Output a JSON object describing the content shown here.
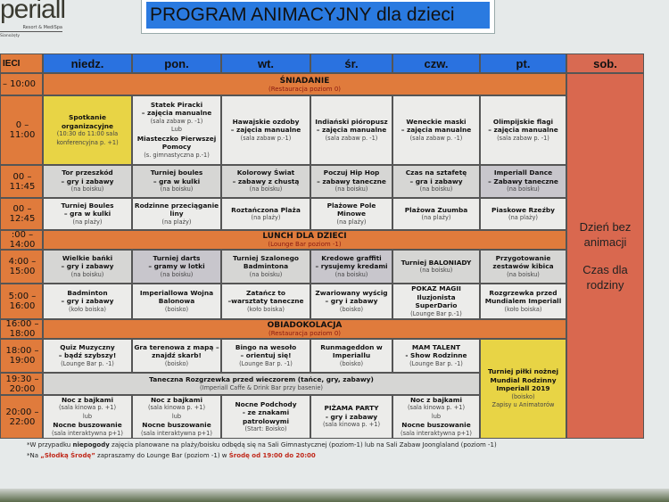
{
  "logo": {
    "brand": "periall",
    "subtitle": "Resort & MediSpa",
    "location": "Sianożęty"
  },
  "title": "PROGRAM ANIMACYJNY dla dzieci",
  "header": {
    "corner": "IECI",
    "days": [
      "niedz.",
      "pon.",
      "wt.",
      "śr.",
      "czw.",
      "pt.",
      "sob."
    ]
  },
  "rows": [
    {
      "time": "– 10:00",
      "banner": {
        "title": "ŚNIADANIE",
        "sub": "(Restauracja poziom 0)"
      }
    },
    {
      "time": "0 – 11:00",
      "cells": [
        {
          "tone": "yellow",
          "lines": [
            {
              "t": "Spotkanie organizacyjne",
              "s": "b"
            },
            {
              "t": "(10:30 do 11:00 sala konferencyjna p. +1)",
              "s": "s"
            }
          ]
        },
        {
          "tone": "light",
          "lines": [
            {
              "t": "Statek Piracki",
              "s": "b"
            },
            {
              "t": "– zajęcia manualne",
              "s": "b"
            },
            {
              "t": "(sala zabaw p. -1)",
              "s": "s"
            },
            {
              "t": "Lub",
              "s": "s"
            },
            {
              "t": "Miasteczko Pierwszej Pomocy",
              "s": "b"
            },
            {
              "t": "(s. gimnastyczna p.-1)",
              "s": "s"
            }
          ]
        },
        {
          "tone": "light",
          "lines": [
            {
              "t": "Hawajskie ozdoby",
              "s": "b"
            },
            {
              "t": "– zajęcia manualne",
              "s": "b"
            },
            {
              "t": "(sala zabaw p.-1)",
              "s": "s"
            }
          ]
        },
        {
          "tone": "light",
          "lines": [
            {
              "t": "Indiański pióropusz",
              "s": "b"
            },
            {
              "t": "– zajęcia manualne",
              "s": "b"
            },
            {
              "t": "(sala zabaw p. -1)",
              "s": "s"
            }
          ]
        },
        {
          "tone": "light",
          "lines": [
            {
              "t": "Weneckie maski",
              "s": "b"
            },
            {
              "t": "– zajęcia manualne",
              "s": "b"
            },
            {
              "t": "(sala zabaw p. -1)",
              "s": "s"
            }
          ]
        },
        {
          "tone": "light",
          "lines": [
            {
              "t": "Olimpijskie flagi",
              "s": "b"
            },
            {
              "t": "– zajęcia manualne",
              "s": "b"
            },
            {
              "t": "(sala zabaw p. -1)",
              "s": "s"
            }
          ]
        }
      ]
    },
    {
      "time": "00 – 11:45",
      "cells": [
        {
          "tone": "gray",
          "lines": [
            {
              "t": "Tor przeszkód",
              "s": "b"
            },
            {
              "t": "– gry i zabawy",
              "s": "b"
            },
            {
              "t": "(na boisku)",
              "s": "s"
            }
          ]
        },
        {
          "tone": "gray",
          "lines": [
            {
              "t": "Turniej boules",
              "s": "b"
            },
            {
              "t": "– gra w kulki",
              "s": "b"
            },
            {
              "t": "(na boisku)",
              "s": "s"
            }
          ]
        },
        {
          "tone": "gray",
          "lines": [
            {
              "t": "Kolorowy Świat",
              "s": "b"
            },
            {
              "t": "– zabawy z chustą",
              "s": "b"
            },
            {
              "t": "(na boisku)",
              "s": "s"
            }
          ]
        },
        {
          "tone": "gray",
          "lines": [
            {
              "t": "Poczuj Hip Hop",
              "s": "b"
            },
            {
              "t": "– zabawy taneczne",
              "s": "b"
            },
            {
              "t": "(na boisku)",
              "s": "s"
            }
          ]
        },
        {
          "tone": "gray",
          "lines": [
            {
              "t": "Czas na sztafetę",
              "s": "b"
            },
            {
              "t": "– gra i zabawy",
              "s": "b"
            },
            {
              "t": "(na boisku)",
              "s": "s"
            }
          ]
        },
        {
          "tone": "purple",
          "lines": [
            {
              "t": "Imperiall Dance",
              "s": "b"
            },
            {
              "t": "– Zabawy taneczne",
              "s": "b"
            },
            {
              "t": "(na boisku)",
              "s": "s"
            }
          ]
        }
      ]
    },
    {
      "time": "00 – 12:45",
      "cells": [
        {
          "tone": "light",
          "lines": [
            {
              "t": "Turniej Boules",
              "s": "b"
            },
            {
              "t": "– gra w kulki",
              "s": "b"
            },
            {
              "t": "(na plaży)",
              "s": "s"
            }
          ]
        },
        {
          "tone": "light",
          "lines": [
            {
              "t": "Rodzinne przeciąganie liny",
              "s": "b"
            },
            {
              "t": "(na plaży)",
              "s": "s"
            }
          ]
        },
        {
          "tone": "light",
          "lines": [
            {
              "t": "Roztańczona Plaża",
              "s": "b"
            },
            {
              "t": "(na plaży)",
              "s": "s"
            }
          ]
        },
        {
          "tone": "light",
          "lines": [
            {
              "t": "Plażowe Pole Minowe",
              "s": "b"
            },
            {
              "t": "(na plaży)",
              "s": "s"
            }
          ]
        },
        {
          "tone": "light",
          "lines": [
            {
              "t": "Plażowa Zuumba",
              "s": "b"
            },
            {
              "t": "(na plaży)",
              "s": "s"
            }
          ]
        },
        {
          "tone": "light",
          "lines": [
            {
              "t": "Piaskowe Rzeźby",
              "s": "b"
            },
            {
              "t": "(na plaży)",
              "s": "s"
            }
          ]
        }
      ]
    },
    {
      "time": ":00 – 14:00",
      "banner": {
        "title": "LUNCH DLA DZIECI",
        "sub": "(Lounge Bar poziom -1)"
      }
    },
    {
      "time": "4:00 – 15:00",
      "cells": [
        {
          "tone": "gray",
          "lines": [
            {
              "t": "Wielkie bańki",
              "s": "b"
            },
            {
              "t": "– gry i zabawy",
              "s": "b"
            },
            {
              "t": "(na boisku)",
              "s": "s"
            }
          ]
        },
        {
          "tone": "purple",
          "lines": [
            {
              "t": "Turniej darts",
              "s": "b"
            },
            {
              "t": "– gramy w lotki",
              "s": "b"
            },
            {
              "t": "(na boisku)",
              "s": "s"
            }
          ]
        },
        {
          "tone": "gray",
          "lines": [
            {
              "t": "Turniej Szalonego Badmintona",
              "s": "b"
            },
            {
              "t": "(na boisku)",
              "s": "s"
            }
          ]
        },
        {
          "tone": "purple",
          "lines": [
            {
              "t": "Kredowe graffiti",
              "s": "b"
            },
            {
              "t": "– rysujemy kredami",
              "s": "b"
            },
            {
              "t": "(na boisku)",
              "s": "s"
            }
          ]
        },
        {
          "tone": "gray",
          "lines": [
            {
              "t": "Turniej BALONIADY",
              "s": "b"
            },
            {
              "t": "(na boisku)",
              "s": "s"
            }
          ]
        },
        {
          "tone": "gray",
          "lines": [
            {
              "t": "Przygotowanie zestawów kibica",
              "s": "b"
            },
            {
              "t": "(na boisku)",
              "s": "s"
            }
          ]
        }
      ]
    },
    {
      "time": "5:00 – 16:00",
      "cells": [
        {
          "tone": "light",
          "lines": [
            {
              "t": "Badminton",
              "s": "b"
            },
            {
              "t": "– gry i zabawy",
              "s": "b"
            },
            {
              "t": "(koło boiska)",
              "s": "s"
            }
          ]
        },
        {
          "tone": "light",
          "lines": [
            {
              "t": "Imperiallowa Wojna Balonowa",
              "s": "b"
            },
            {
              "t": "(boisko)",
              "s": "s"
            }
          ]
        },
        {
          "tone": "light",
          "lines": [
            {
              "t": "Zatańcz to",
              "s": "b"
            },
            {
              "t": "–warsztaty taneczne",
              "s": "b"
            },
            {
              "t": "(koło boiska)",
              "s": "s"
            }
          ]
        },
        {
          "tone": "light",
          "lines": [
            {
              "t": "Zwariowany wyścig",
              "s": "b"
            },
            {
              "t": "– gry i zabawy",
              "s": "b"
            },
            {
              "t": "(boisko)",
              "s": "s"
            }
          ]
        },
        {
          "tone": "light",
          "lines": [
            {
              "t": "POKAZ MAGII",
              "s": "b"
            },
            {
              "t": "Iluzjonista",
              "s": "b"
            },
            {
              "t": "SuperDario",
              "s": "b"
            },
            {
              "t": "(Lounge Bar p.-1)",
              "s": "s"
            }
          ]
        },
        {
          "tone": "light",
          "lines": [
            {
              "t": "Rozgrzewka przed Mundialem Imperiall",
              "s": "b"
            },
            {
              "t": "(koło boiska)",
              "s": "s"
            }
          ]
        }
      ]
    },
    {
      "time": "16:00 – 18:00",
      "banner": {
        "title": "OBIADOKOLACJA",
        "sub": "(Restauracja poziom 0)"
      }
    },
    {
      "time": "18:00 – 19:00",
      "cells": [
        {
          "tone": "light",
          "lines": [
            {
              "t": "Quiz Muzyczny",
              "s": "b"
            },
            {
              "t": "– bądź szybszy!",
              "s": "b"
            },
            {
              "t": "(Lounge Bar p. -1)",
              "s": "s"
            }
          ]
        },
        {
          "tone": "light",
          "lines": [
            {
              "t": "Gra terenowa z mapą – znajdź skarb!",
              "s": "b"
            },
            {
              "t": "(boisko)",
              "s": "s"
            }
          ]
        },
        {
          "tone": "light",
          "lines": [
            {
              "t": "Bingo na wesoło",
              "s": "b"
            },
            {
              "t": "– orientuj się!",
              "s": "b"
            },
            {
              "t": "(Lounge Bar p. -1)",
              "s": "s"
            }
          ]
        },
        {
          "tone": "light",
          "lines": [
            {
              "t": "Runmageddon w Imperiallu",
              "s": "b"
            },
            {
              "t": "(boisko)",
              "s": "s"
            }
          ]
        },
        {
          "tone": "light",
          "lines": [
            {
              "t": "MAM TALENT",
              "s": "b"
            },
            {
              "t": "- Show Rodzinne",
              "s": "b"
            },
            {
              "t": "(Lounge Bar p. -1)",
              "s": "s"
            }
          ]
        },
        {
          "tone": "yellow",
          "lines": [
            {
              "t": "Turniej piłki nożnej Mundial Rodzinny Imperiall 2019",
              "s": "b"
            },
            {
              "t": "(boisko)",
              "s": "s"
            },
            {
              "t": " ",
              "s": "s"
            },
            {
              "t": "Zapisy u Animatorów",
              "s": "s"
            }
          ]
        }
      ]
    },
    {
      "time": "19:30 – 20:00",
      "cells": [
        {
          "tone": "gray",
          "lines": [
            {
              "t": "Taneczna Rozgrzewka przed wieczorem (tańce, gry, zabawy)",
              "s": "b"
            },
            {
              "t": "(Imperiall Caffe & Drink Bar przy basenie)",
              "s": "s"
            }
          ]
        }
      ]
    },
    {
      "time": "20:00 – 22:00",
      "cells": [
        {
          "tone": "light",
          "lines": [
            {
              "t": "Noc z bajkami",
              "s": "b"
            },
            {
              "t": "(sala kinowa p. +1)",
              "s": "s"
            },
            {
              "t": "lub",
              "s": "s"
            },
            {
              "t": "Nocne buszowanie",
              "s": "b"
            },
            {
              "t": "(sala interaktywna p+1)",
              "s": "s"
            }
          ]
        },
        {
          "tone": "light",
          "lines": [
            {
              "t": "Noc z bajkami",
              "s": "b"
            },
            {
              "t": "(sala kinowa p. +1)",
              "s": "s"
            },
            {
              "t": "lub",
              "s": "s"
            },
            {
              "t": "Nocne buszowanie",
              "s": "b"
            },
            {
              "t": "(sala interaktywna p+1)",
              "s": "s"
            }
          ]
        },
        {
          "tone": "light",
          "lines": [
            {
              "t": "Nocne Podchody",
              "s": "b"
            },
            {
              "t": "- ze znakami patrolowymi",
              "s": "b"
            },
            {
              "t": "(Start: Boisko)",
              "s": "s"
            }
          ]
        },
        {
          "tone": "light",
          "lines": [
            {
              "t": "PIŻAMA PARTY",
              "s": "b"
            },
            {
              "t": "- gry i zabawy",
              "s": "b"
            },
            {
              "t": "(sala kinowa p. +1)",
              "s": "s"
            }
          ]
        },
        {
          "tone": "light",
          "lines": [
            {
              "t": "Noc z bajkami",
              "s": "b"
            },
            {
              "t": "(sala kinowa p. +1)",
              "s": "s"
            },
            {
              "t": "lub",
              "s": "s"
            },
            {
              "t": "Nocne buszowanie",
              "s": "b"
            },
            {
              "t": "(sala interaktywna p+1)",
              "s": "s"
            }
          ]
        }
      ]
    }
  ],
  "saturday": {
    "line1": "Dzień bez animacji",
    "line2": "Czas dla rodziny"
  },
  "footnotes": {
    "note1_a": "*W przypadku ",
    "note1_b": "niepogody",
    "note1_c": " zajęcia planowane na plaży/boisku odbędą się na Sali Gimnastycznej (poziom-1) lub na Sali Zabaw Joonglaland (poziom -1)",
    "note2_a": "*Na ",
    "note2_b": "„Słodką Środę”",
    "note2_c": " zapraszamy do Lounge Bar (poziom -1) w ",
    "note2_d": "Środę od 19:00 do 20:00"
  },
  "colors": {
    "header": "#2a72e0",
    "time_banner": "#e07b3c",
    "saturday": "#d9684f",
    "highlight": "#e8d445",
    "footnote_red": "#c0281a"
  }
}
